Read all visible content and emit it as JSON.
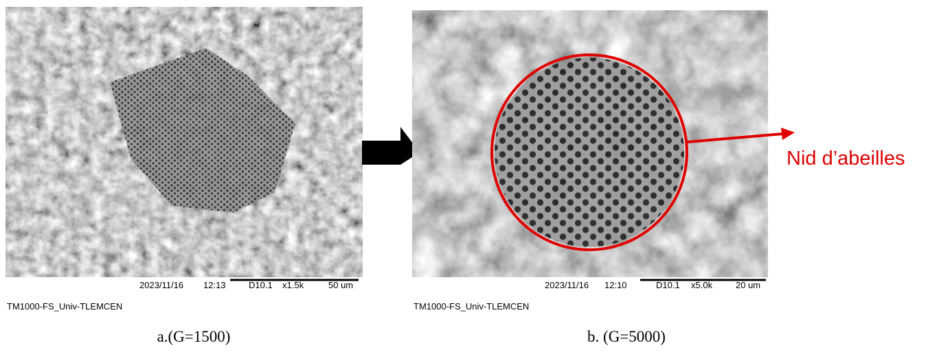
{
  "panels": [
    {
      "date": "2023/11/16",
      "time": "12:13",
      "detector": "D10.1",
      "magnification": "x1.5k",
      "scale": "50 um",
      "instrument": "TM1000-FS_Univ-TLEMCEN",
      "caption": "a.(G=1500)"
    },
    {
      "date": "2023/11/16",
      "time": "12:10",
      "detector": "D10.1",
      "magnification": "x5.0k",
      "scale": "20 um",
      "instrument": "TM1000-FS_Univ-TLEMCEN",
      "caption": "b. (G=5000)"
    }
  ],
  "annotation": "Nid d’abeilles"
}
